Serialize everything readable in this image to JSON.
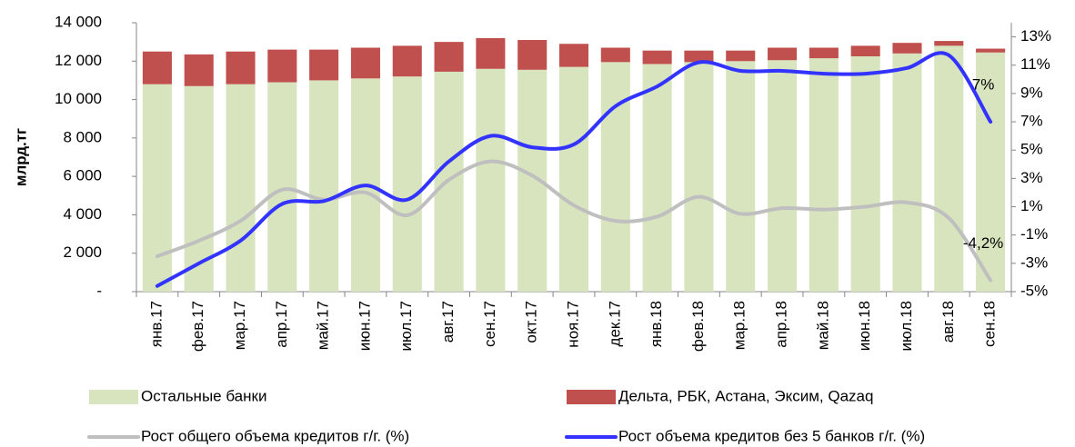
{
  "chart_data": {
    "type": "bar_line",
    "ylabel": "млрд.тг",
    "categories": [
      "янв.17",
      "фев.17",
      "мар.17",
      "апр.17",
      "май.17",
      "июн.17",
      "июл.17",
      "авг.17",
      "сен.17",
      "окт.17",
      "ноя.17",
      "дек.17",
      "янв.18",
      "фев.18",
      "мар.18",
      "апр.18",
      "май.18",
      "июн.18",
      "июл.18",
      "авг.18",
      "сен.18"
    ],
    "series": [
      {
        "name": "Остальные банки",
        "type": "bar",
        "color": "#d7e4bd",
        "values": [
          10800,
          10700,
          10800,
          10900,
          11000,
          11100,
          11200,
          11450,
          11600,
          11550,
          11700,
          11950,
          11850,
          11950,
          12000,
          12050,
          12150,
          12250,
          12400,
          12800,
          12450
        ]
      },
      {
        "name": "Дельта, РБК, Астана, Эксим, Qazaq",
        "type": "bar",
        "color": "#c0504d",
        "values": [
          1700,
          1650,
          1700,
          1700,
          1600,
          1600,
          1600,
          1550,
          1600,
          1550,
          1200,
          750,
          700,
          600,
          550,
          650,
          550,
          550,
          550,
          250,
          200
        ]
      },
      {
        "name": "Рост общего объема кредитов г/г. (%)",
        "type": "line",
        "axis": "y2",
        "color": "#bfbfbf",
        "values": [
          -2.5,
          -1.4,
          0,
          2.2,
          1.5,
          2.0,
          0.4,
          2.9,
          4.2,
          3.2,
          1.1,
          0,
          0.3,
          1.7,
          0.5,
          0.9,
          0.8,
          1.0,
          1.3,
          0.2,
          -4.2
        ],
        "value_labels": [
          null,
          null,
          null,
          null,
          null,
          null,
          null,
          null,
          null,
          null,
          null,
          null,
          null,
          null,
          null,
          null,
          null,
          null,
          null,
          null,
          "-4,2%"
        ]
      },
      {
        "name": "Рост объема кредитов без 5 банков г/г. (%)",
        "type": "line",
        "axis": "y2",
        "color": "#3333ff",
        "values": [
          -4.6,
          -3.0,
          -1.4,
          1.2,
          1.4,
          2.5,
          1.5,
          4.2,
          6.0,
          5.2,
          5.4,
          8.1,
          9.5,
          11.2,
          10.6,
          10.6,
          10.4,
          10.4,
          10.8,
          11.7,
          7.0
        ],
        "value_labels": [
          null,
          null,
          null,
          null,
          null,
          null,
          null,
          null,
          null,
          null,
          null,
          null,
          null,
          null,
          null,
          null,
          null,
          null,
          null,
          null,
          "7%"
        ]
      }
    ],
    "ylim": [
      0,
      14000
    ],
    "yticks": [
      {
        "value": 0,
        "label": "-"
      },
      {
        "value": 2000,
        "label": "2 000"
      },
      {
        "value": 4000,
        "label": "4 000"
      },
      {
        "value": 6000,
        "label": "6 000"
      },
      {
        "value": 8000,
        "label": "8 000"
      },
      {
        "value": 10000,
        "label": "10 000"
      },
      {
        "value": 12000,
        "label": "12 000"
      },
      {
        "value": 14000,
        "label": "14 000"
      }
    ],
    "y2lim": [
      -5,
      14
    ],
    "y2ticks": [
      {
        "value": -5,
        "label": "-5%"
      },
      {
        "value": -3,
        "label": "-3%"
      },
      {
        "value": -1,
        "label": "-1%"
      },
      {
        "value": 1,
        "label": "1%"
      },
      {
        "value": 3,
        "label": "3%"
      },
      {
        "value": 5,
        "label": "5%"
      },
      {
        "value": 7,
        "label": "7%"
      },
      {
        "value": 9,
        "label": "9%"
      },
      {
        "value": 11,
        "label": "11%"
      },
      {
        "value": 13,
        "label": "13%"
      }
    ],
    "grid": false,
    "legend": "bottom"
  }
}
